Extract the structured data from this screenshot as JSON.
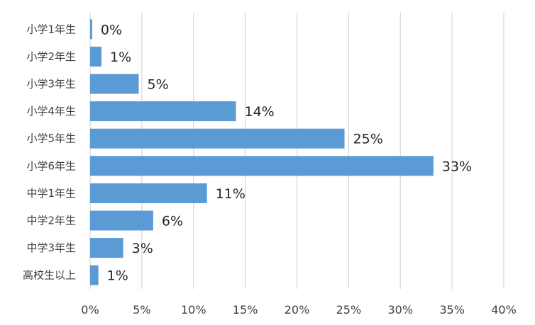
{
  "chart_data": {
    "type": "bar",
    "orientation": "horizontal",
    "categories": [
      "小学1年生",
      "小学2年生",
      "小学3年生",
      "小学4年生",
      "小学5年生",
      "小学6年生",
      "中学1年生",
      "中学2年生",
      "中学3年生",
      "高校生以上"
    ],
    "values": [
      0.2,
      1.1,
      4.7,
      14.1,
      24.6,
      33.2,
      11.3,
      6.1,
      3.2,
      0.8
    ],
    "data_labels": [
      "0%",
      "1%",
      "5%",
      "14%",
      "25%",
      "33%",
      "11%",
      "6%",
      "3%",
      "1%"
    ],
    "x_ticks": [
      "0%",
      "5%",
      "10%",
      "15%",
      "20%",
      "25%",
      "30%",
      "35%",
      "40%"
    ],
    "xlim": [
      0,
      40
    ],
    "grid": true,
    "bar_color": "#5b9bd5",
    "gridline_color": "#d9d9d9"
  }
}
